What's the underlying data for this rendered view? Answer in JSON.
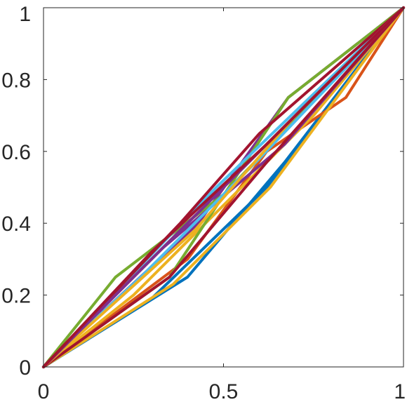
{
  "chart_data": {
    "type": "line",
    "title": "",
    "xlabel": "",
    "ylabel": "",
    "xlim": [
      0,
      1
    ],
    "ylim": [
      0,
      1
    ],
    "grid": false,
    "legend": "none",
    "x_ticks": [
      0,
      0.5,
      1
    ],
    "x_tick_labels": [
      "0",
      "0.5",
      "1"
    ],
    "y_ticks": [
      0,
      0.2,
      0.4,
      0.6,
      0.8,
      1
    ],
    "y_tick_labels": [
      "0",
      "0.2",
      "0.4",
      "0.6",
      "0.8",
      "1"
    ],
    "series": [
      {
        "color": "#0072BD",
        "x": [
          0,
          0.4,
          0.67,
          1
        ],
        "y": [
          0,
          0.25,
          0.57,
          1
        ]
      },
      {
        "color": "#0072BD",
        "x": [
          0,
          0.3,
          0.62,
          1
        ],
        "y": [
          0,
          0.19,
          0.5,
          1
        ]
      },
      {
        "color": "#D95319",
        "x": [
          0,
          0.4,
          0.62,
          0.84,
          1
        ],
        "y": [
          0,
          0.3,
          0.6,
          0.75,
          1
        ]
      },
      {
        "color": "#EDB120",
        "x": [
          0,
          0.36,
          0.63,
          1
        ],
        "y": [
          0,
          0.23,
          0.5,
          1
        ]
      },
      {
        "color": "#EDB120",
        "x": [
          0,
          0.25,
          0.5,
          0.75,
          1
        ],
        "y": [
          0,
          0.2,
          0.45,
          0.7,
          1
        ]
      },
      {
        "color": "#7E2F8E",
        "x": [
          0,
          0.33,
          0.67,
          1
        ],
        "y": [
          0,
          0.33,
          0.62,
          1
        ]
      },
      {
        "color": "#7E2F8E",
        "x": [
          0,
          0.43,
          0.68,
          1
        ],
        "y": [
          0,
          0.4,
          0.75,
          1
        ]
      },
      {
        "color": "#77AC30",
        "x": [
          0,
          0.2,
          0.5,
          1
        ],
        "y": [
          0,
          0.25,
          0.48,
          1
        ]
      },
      {
        "color": "#77AC30",
        "x": [
          0,
          0.35,
          0.68,
          1
        ],
        "y": [
          0,
          0.25,
          0.75,
          1
        ]
      },
      {
        "color": "#4DBEEE",
        "x": [
          0,
          0.48,
          1
        ],
        "y": [
          0,
          0.5,
          1
        ]
      },
      {
        "color": "#4DBEEE",
        "x": [
          0,
          0.27,
          0.6,
          1
        ],
        "y": [
          0,
          0.25,
          0.58,
          1
        ]
      },
      {
        "color": "#A2142F",
        "x": [
          0,
          0.38,
          0.6,
          1
        ],
        "y": [
          0,
          0.4,
          0.65,
          1
        ]
      },
      {
        "color": "#A2142F",
        "x": [
          0,
          0.35,
          0.62,
          1
        ],
        "y": [
          0,
          0.25,
          0.57,
          1
        ]
      },
      {
        "color": "#0072BD",
        "x": [
          0,
          0.3,
          0.6,
          1
        ],
        "y": [
          0,
          0.3,
          0.6,
          1
        ]
      },
      {
        "color": "#D95319",
        "x": [
          0,
          0.33,
          0.66,
          1
        ],
        "y": [
          0,
          0.33,
          0.66,
          1
        ]
      },
      {
        "color": "#EDB120",
        "x": [
          0,
          0.42,
          0.7,
          1
        ],
        "y": [
          0,
          0.38,
          0.7,
          1
        ]
      },
      {
        "color": "#7E2F8E",
        "x": [
          0,
          0.25,
          0.55,
          1
        ],
        "y": [
          0,
          0.25,
          0.55,
          1
        ]
      },
      {
        "color": "#A2142F",
        "x": [
          0,
          0.3,
          0.62,
          1
        ],
        "y": [
          0,
          0.32,
          0.62,
          1
        ]
      }
    ]
  }
}
